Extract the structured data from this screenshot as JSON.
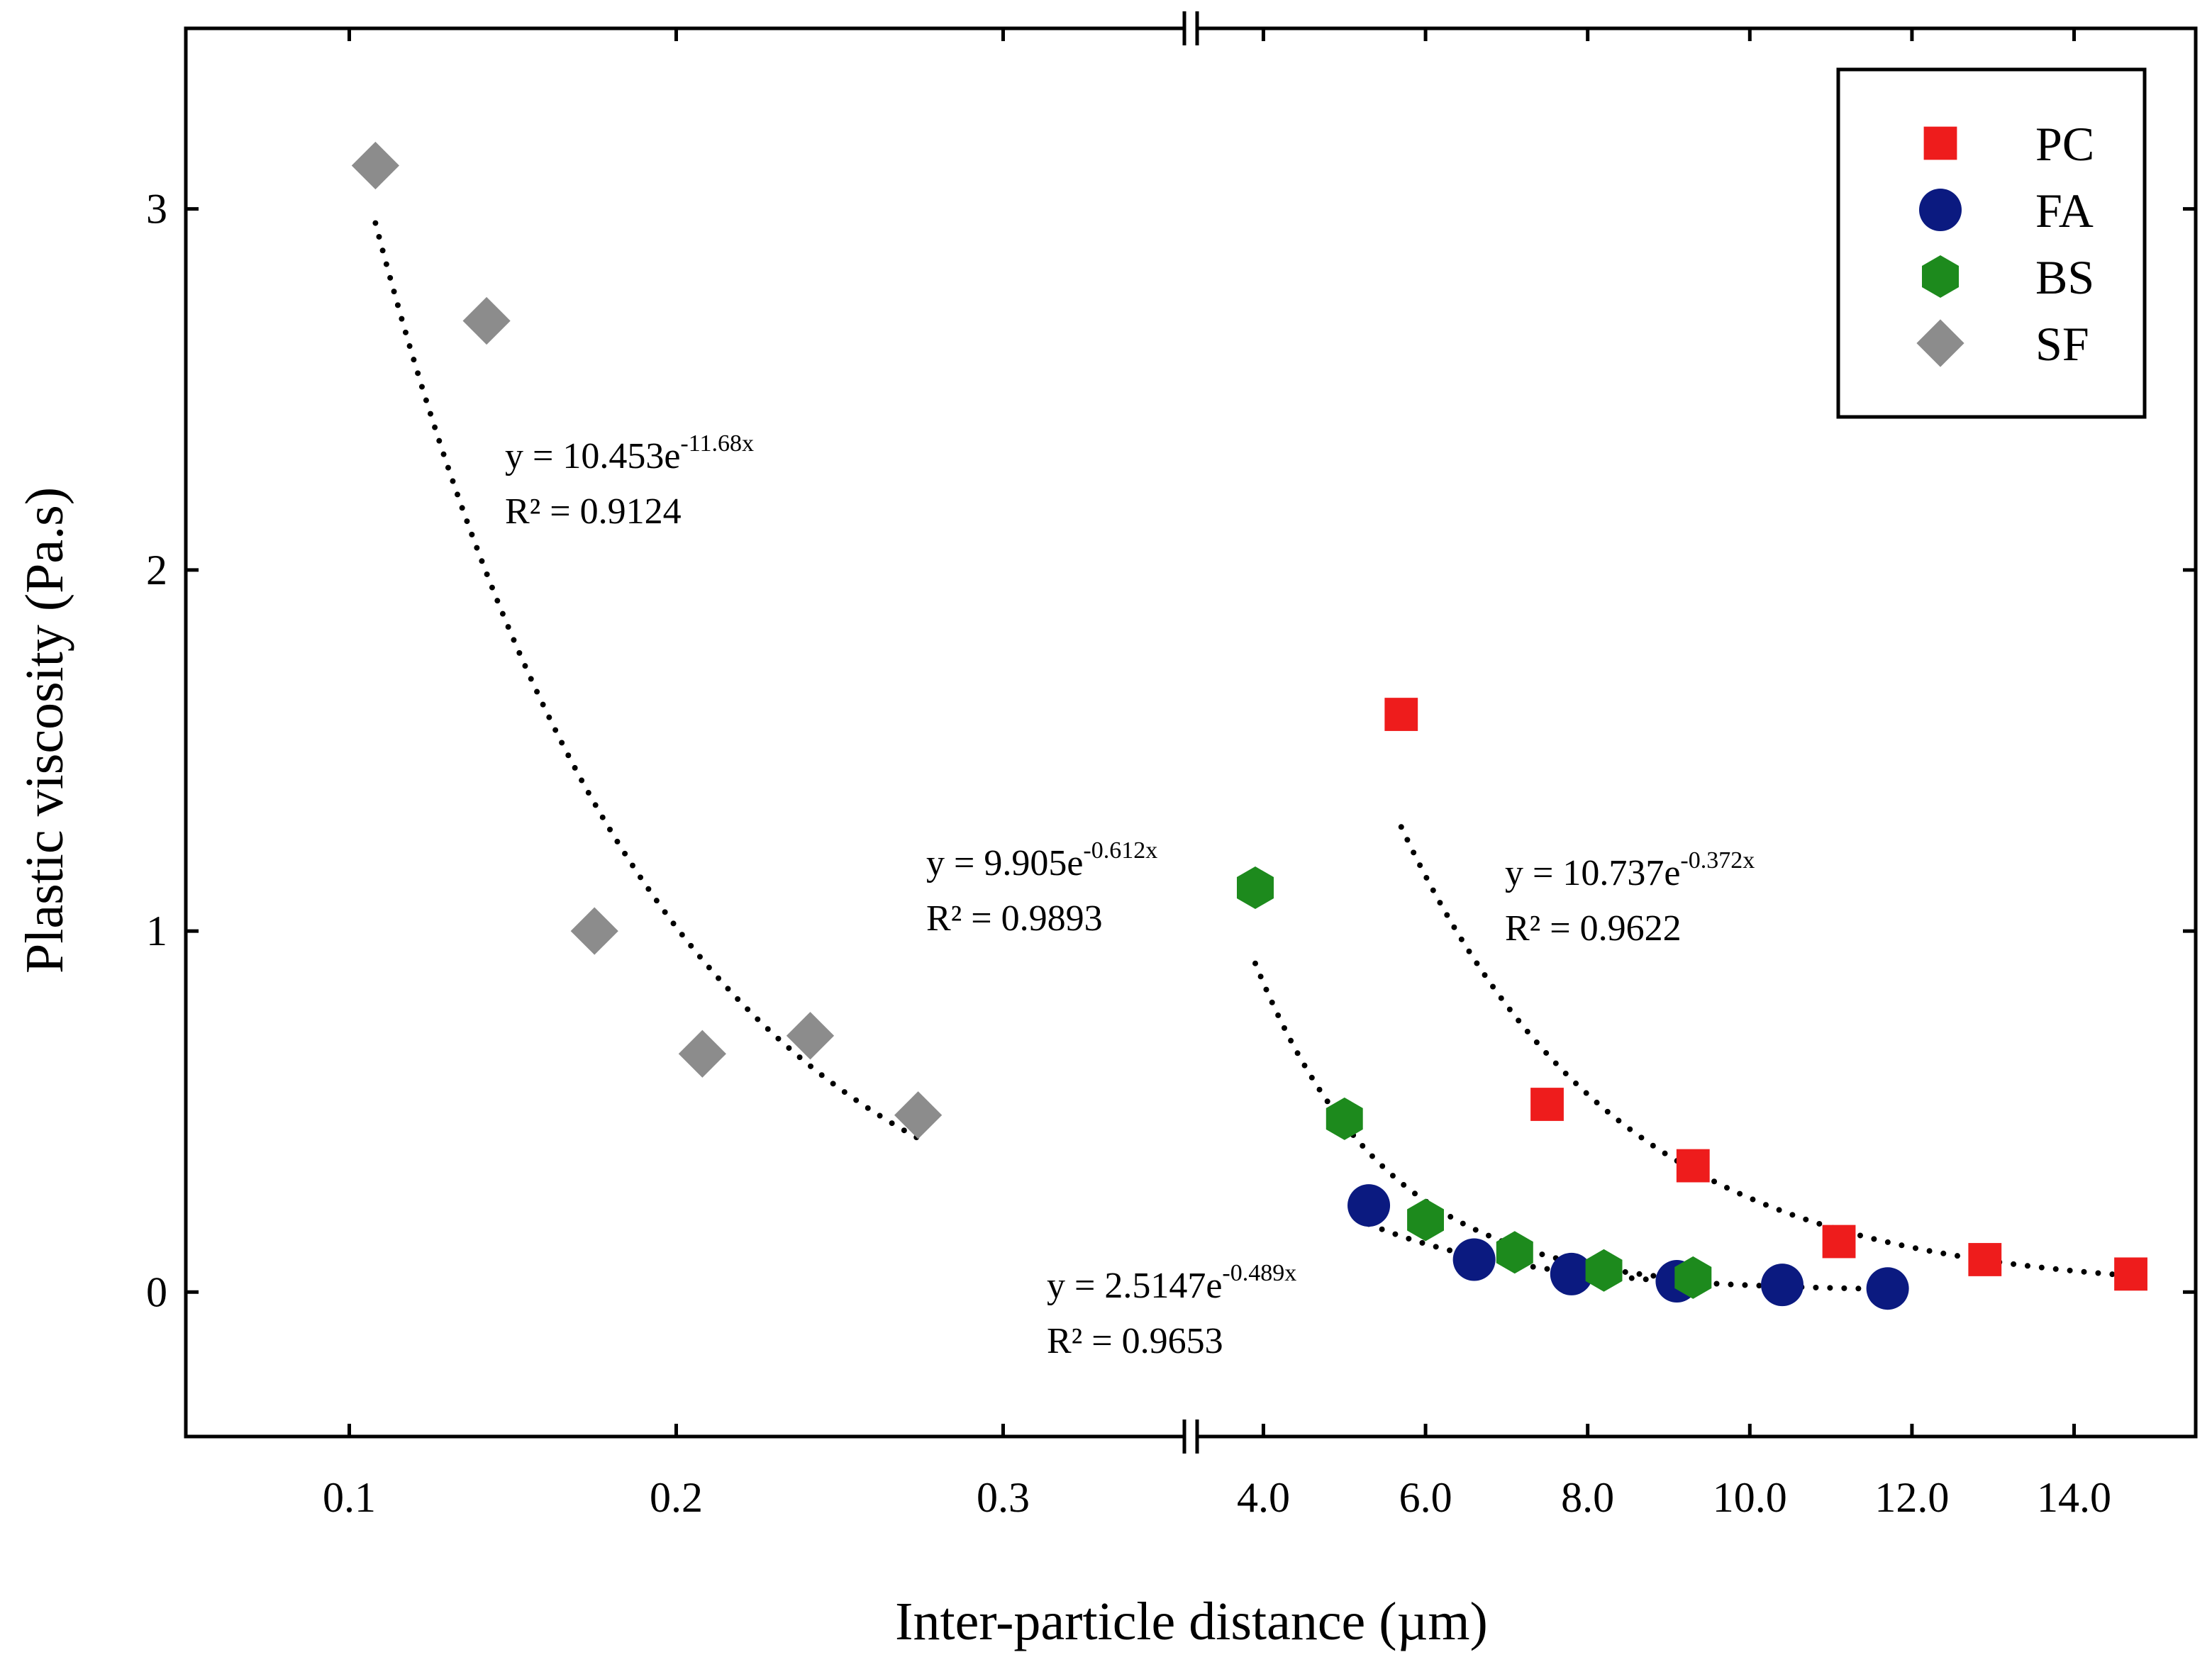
{
  "chart_data": {
    "type": "scatter",
    "title": "",
    "xlabel": "Inter-particle distance (µm)",
    "ylabel": "Plastic viscosity (Pa.s)",
    "broken_x_axis": true,
    "x_segments": [
      {
        "xlim": [
          0.05,
          0.355
        ],
        "ticks": [
          0.1,
          0.2,
          0.3
        ],
        "tick_labels": [
          "0.1",
          "0.2",
          "0.3"
        ]
      },
      {
        "xlim": [
          3.2,
          15.5
        ],
        "ticks": [
          4,
          6,
          8,
          10,
          12,
          14
        ],
        "tick_labels": [
          "4.0",
          "6.0",
          "8.0",
          "10.0",
          "12.0",
          "14.0"
        ]
      }
    ],
    "ylim": [
      -0.4,
      3.5
    ],
    "yticks": [
      0,
      1,
      2,
      3
    ],
    "ytick_labels": [
      "0",
      "1",
      "2",
      "3"
    ],
    "legend_position": "top-right",
    "series": [
      {
        "name": "PC",
        "marker": "square",
        "color": "#ee1c1c",
        "points": [
          [
            5.7,
            1.6
          ],
          [
            7.5,
            0.52
          ],
          [
            9.3,
            0.35
          ],
          [
            11.1,
            0.14
          ],
          [
            12.9,
            0.09
          ],
          [
            14.7,
            0.05
          ]
        ],
        "fit": {
          "a": 10.737,
          "b": -0.372,
          "x_from": 5.7,
          "x_to": 14.7,
          "equation": "y = 10.737e",
          "exponent": "-0.372x",
          "r2": "R² = 0.9622"
        }
      },
      {
        "name": "FA",
        "marker": "circle",
        "color": "#0b1a80",
        "points": [
          [
            5.3,
            0.24
          ],
          [
            6.6,
            0.09
          ],
          [
            7.8,
            0.05
          ],
          [
            9.1,
            0.03
          ],
          [
            10.4,
            0.02
          ],
          [
            11.7,
            0.01
          ]
        ],
        "fit": {
          "a": 2.5147,
          "b": -0.489,
          "x_from": 5.3,
          "x_to": 11.7,
          "equation": "y = 2.5147e",
          "exponent": "-0.489x",
          "r2": "R² = 0.9653"
        }
      },
      {
        "name": "BS",
        "marker": "hexagon",
        "color": "#1d8a1d",
        "points": [
          [
            3.9,
            1.12
          ],
          [
            5.0,
            0.48
          ],
          [
            6.0,
            0.2
          ],
          [
            7.1,
            0.11
          ],
          [
            8.2,
            0.06
          ],
          [
            9.3,
            0.04
          ]
        ],
        "fit": {
          "a": 9.905,
          "b": -0.612,
          "x_from": 3.9,
          "x_to": 9.3,
          "equation": "y = 9.905e",
          "exponent": "-0.612x",
          "r2": "R² = 0.9893"
        }
      },
      {
        "name": "SF",
        "marker": "diamond",
        "color": "#8c8c8c",
        "points": [
          [
            0.108,
            3.12
          ],
          [
            0.142,
            2.69
          ],
          [
            0.175,
            1.0
          ],
          [
            0.208,
            0.66
          ],
          [
            0.241,
            0.71
          ],
          [
            0.274,
            0.49
          ]
        ],
        "fit": {
          "a": 10.453,
          "b": -11.68,
          "x_from": 0.108,
          "x_to": 0.274,
          "equation": "y = 10.453e",
          "exponent": "-11.68x",
          "r2": "R² = 0.9124"
        }
      }
    ]
  }
}
